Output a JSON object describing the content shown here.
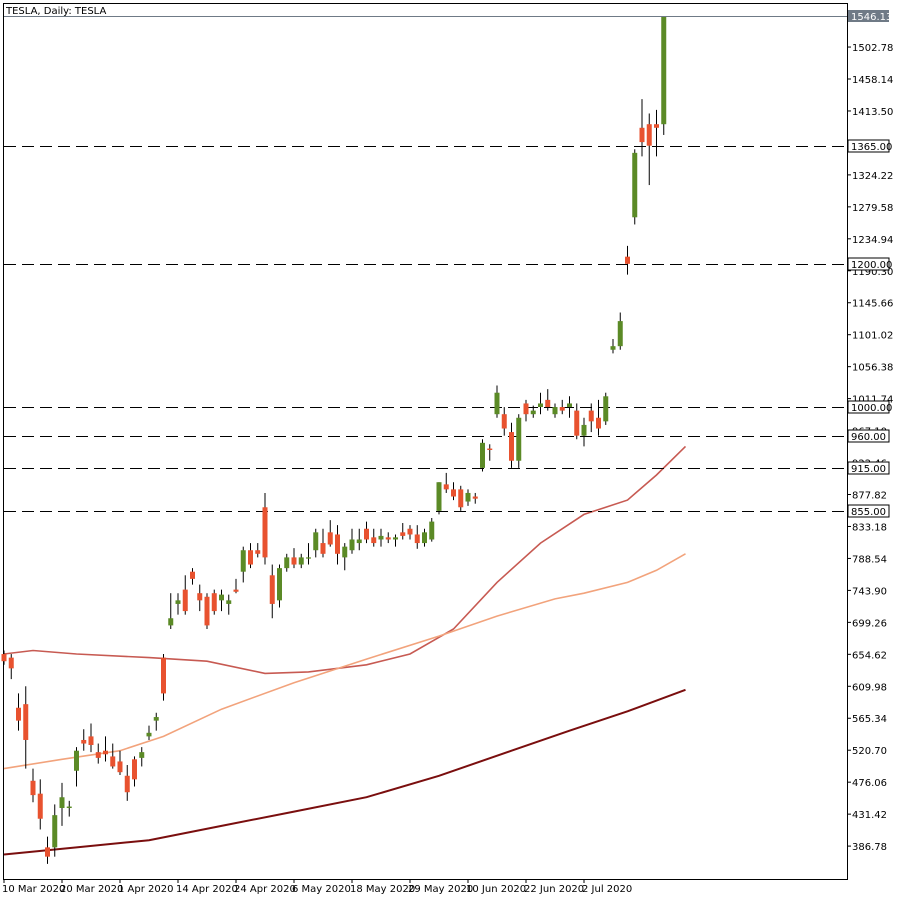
{
  "title": "TESLA, Daily:  TESLA",
  "colors": {
    "background": "#ffffff",
    "axis": "#000000",
    "up": "#5b8a26",
    "down": "#e8522f",
    "wick": "#000000",
    "level_line": "#000000",
    "current_price_box": "#6f7a86",
    "level_box_bg": "#ffffff",
    "ma_fast": "#c75a52",
    "ma_mid": "#f2a37c",
    "ma_slow": "#7a0e0e"
  },
  "chart_data": {
    "type": "candlestick",
    "symbol": "TESLA",
    "timeframe": "Daily",
    "ylim": [
      350,
      1560
    ],
    "y_ticks": [
      "1502.78",
      "1458.14",
      "1413.50",
      "1324.22",
      "1279.58",
      "1234.94",
      "1190.30",
      "1145.66",
      "1101.02",
      "1056.38",
      "1011.74",
      "967.10",
      "922.46",
      "877.82",
      "833.18",
      "788.54",
      "743.90",
      "699.26",
      "654.62",
      "609.98",
      "565.34",
      "520.70",
      "476.06",
      "431.42",
      "386.78"
    ],
    "x_labels": [
      {
        "label": "10 Mar 2020",
        "index": 0
      },
      {
        "label": "20 Mar 2020",
        "index": 8
      },
      {
        "label": "1 Apr 2020",
        "index": 16
      },
      {
        "label": "14 Apr 2020",
        "index": 24
      },
      {
        "label": "24 Apr 2020",
        "index": 32
      },
      {
        "label": "6 May 2020",
        "index": 40
      },
      {
        "label": "18 May 2020",
        "index": 48
      },
      {
        "label": "29 May 2020",
        "index": 56
      },
      {
        "label": "10 Jun 2020",
        "index": 64
      },
      {
        "label": "22 Jun 2020",
        "index": 72
      },
      {
        "label": "2 Jul 2020",
        "index": 80
      }
    ],
    "candles": [
      {
        "o": 655,
        "h": 660,
        "l": 640,
        "c": 645
      },
      {
        "o": 650,
        "h": 655,
        "l": 620,
        "c": 635
      },
      {
        "o": 580,
        "h": 600,
        "l": 548,
        "c": 562
      },
      {
        "o": 585,
        "h": 610,
        "l": 495,
        "c": 535
      },
      {
        "o": 478,
        "h": 495,
        "l": 448,
        "c": 458
      },
      {
        "o": 460,
        "h": 480,
        "l": 410,
        "c": 425
      },
      {
        "o": 385,
        "h": 400,
        "l": 362,
        "c": 372
      },
      {
        "o": 385,
        "h": 445,
        "l": 372,
        "c": 430
      },
      {
        "o": 440,
        "h": 475,
        "l": 415,
        "c": 455
      },
      {
        "o": 440,
        "h": 450,
        "l": 428,
        "c": 442
      },
      {
        "o": 492,
        "h": 525,
        "l": 470,
        "c": 520
      },
      {
        "o": 535,
        "h": 550,
        "l": 520,
        "c": 530
      },
      {
        "o": 540,
        "h": 558,
        "l": 518,
        "c": 528
      },
      {
        "o": 518,
        "h": 530,
        "l": 502,
        "c": 510
      },
      {
        "o": 520,
        "h": 540,
        "l": 505,
        "c": 515
      },
      {
        "o": 512,
        "h": 530,
        "l": 495,
        "c": 498
      },
      {
        "o": 505,
        "h": 520,
        "l": 486,
        "c": 490
      },
      {
        "o": 485,
        "h": 500,
        "l": 450,
        "c": 462
      },
      {
        "o": 508,
        "h": 512,
        "l": 470,
        "c": 480
      },
      {
        "o": 510,
        "h": 525,
        "l": 498,
        "c": 518
      },
      {
        "o": 540,
        "h": 555,
        "l": 535,
        "c": 545
      },
      {
        "o": 562,
        "h": 573,
        "l": 548,
        "c": 567
      },
      {
        "o": 650,
        "h": 655,
        "l": 590,
        "c": 600
      },
      {
        "o": 695,
        "h": 740,
        "l": 690,
        "c": 705
      },
      {
        "o": 725,
        "h": 740,
        "l": 710,
        "c": 730
      },
      {
        "o": 745,
        "h": 765,
        "l": 710,
        "c": 715
      },
      {
        "o": 770,
        "h": 775,
        "l": 752,
        "c": 760
      },
      {
        "o": 740,
        "h": 752,
        "l": 715,
        "c": 730
      },
      {
        "o": 735,
        "h": 740,
        "l": 690,
        "c": 695
      },
      {
        "o": 740,
        "h": 745,
        "l": 710,
        "c": 715
      },
      {
        "o": 730,
        "h": 745,
        "l": 715,
        "c": 738
      },
      {
        "o": 725,
        "h": 738,
        "l": 710,
        "c": 730
      },
      {
        "o": 745,
        "h": 760,
        "l": 740,
        "c": 742
      },
      {
        "o": 770,
        "h": 805,
        "l": 755,
        "c": 800
      },
      {
        "o": 800,
        "h": 810,
        "l": 775,
        "c": 780
      },
      {
        "o": 800,
        "h": 810,
        "l": 790,
        "c": 795
      },
      {
        "o": 860,
        "h": 880,
        "l": 780,
        "c": 790
      },
      {
        "o": 765,
        "h": 780,
        "l": 705,
        "c": 725
      },
      {
        "o": 730,
        "h": 780,
        "l": 720,
        "c": 775
      },
      {
        "o": 775,
        "h": 795,
        "l": 770,
        "c": 790
      },
      {
        "o": 790,
        "h": 803,
        "l": 775,
        "c": 780
      },
      {
        "o": 780,
        "h": 795,
        "l": 775,
        "c": 790
      },
      {
        "o": 790,
        "h": 810,
        "l": 780,
        "c": 790
      },
      {
        "o": 800,
        "h": 830,
        "l": 790,
        "c": 825
      },
      {
        "o": 810,
        "h": 830,
        "l": 790,
        "c": 795
      },
      {
        "o": 825,
        "h": 842,
        "l": 805,
        "c": 808
      },
      {
        "o": 822,
        "h": 835,
        "l": 780,
        "c": 795
      },
      {
        "o": 790,
        "h": 810,
        "l": 772,
        "c": 805
      },
      {
        "o": 800,
        "h": 830,
        "l": 795,
        "c": 815
      },
      {
        "o": 810,
        "h": 830,
        "l": 800,
        "c": 815
      },
      {
        "o": 830,
        "h": 840,
        "l": 810,
        "c": 815
      },
      {
        "o": 818,
        "h": 830,
        "l": 805,
        "c": 810
      },
      {
        "o": 815,
        "h": 830,
        "l": 805,
        "c": 820
      },
      {
        "o": 818,
        "h": 825,
        "l": 810,
        "c": 815
      },
      {
        "o": 815,
        "h": 822,
        "l": 805,
        "c": 818
      },
      {
        "o": 825,
        "h": 838,
        "l": 815,
        "c": 820
      },
      {
        "o": 830,
        "h": 835,
        "l": 815,
        "c": 822
      },
      {
        "o": 822,
        "h": 835,
        "l": 802,
        "c": 810
      },
      {
        "o": 810,
        "h": 830,
        "l": 805,
        "c": 825
      },
      {
        "o": 815,
        "h": 845,
        "l": 812,
        "c": 840
      },
      {
        "o": 855,
        "h": 895,
        "l": 850,
        "c": 895
      },
      {
        "o": 892,
        "h": 908,
        "l": 880,
        "c": 885
      },
      {
        "o": 885,
        "h": 895,
        "l": 870,
        "c": 875
      },
      {
        "o": 885,
        "h": 890,
        "l": 855,
        "c": 860
      },
      {
        "o": 868,
        "h": 885,
        "l": 862,
        "c": 880
      },
      {
        "o": 875,
        "h": 880,
        "l": 865,
        "c": 872
      },
      {
        "o": 915,
        "h": 955,
        "l": 910,
        "c": 950
      },
      {
        "o": 942,
        "h": 948,
        "l": 925,
        "c": 940
      },
      {
        "o": 990,
        "h": 1030,
        "l": 985,
        "c": 1020
      },
      {
        "o": 990,
        "h": 1000,
        "l": 960,
        "c": 970
      },
      {
        "o": 965,
        "h": 978,
        "l": 915,
        "c": 925
      },
      {
        "o": 925,
        "h": 990,
        "l": 915,
        "c": 985
      },
      {
        "o": 1005,
        "h": 1010,
        "l": 980,
        "c": 990
      },
      {
        "o": 990,
        "h": 1002,
        "l": 985,
        "c": 995
      },
      {
        "o": 1000,
        "h": 1020,
        "l": 990,
        "c": 1005
      },
      {
        "o": 1010,
        "h": 1025,
        "l": 995,
        "c": 1000
      },
      {
        "o": 990,
        "h": 1005,
        "l": 985,
        "c": 1000
      },
      {
        "o": 1000,
        "h": 1010,
        "l": 990,
        "c": 995
      },
      {
        "o": 1000,
        "h": 1015,
        "l": 985,
        "c": 1005
      },
      {
        "o": 995,
        "h": 1005,
        "l": 955,
        "c": 960
      },
      {
        "o": 960,
        "h": 985,
        "l": 945,
        "c": 975
      },
      {
        "o": 995,
        "h": 1005,
        "l": 965,
        "c": 980
      },
      {
        "o": 985,
        "h": 1010,
        "l": 960,
        "c": 970
      },
      {
        "o": 980,
        "h": 1020,
        "l": 975,
        "c": 1015
      },
      {
        "o": 1080,
        "h": 1095,
        "l": 1075,
        "c": 1085
      },
      {
        "o": 1085,
        "h": 1132,
        "l": 1080,
        "c": 1120
      },
      {
        "o": 1210,
        "h": 1225,
        "l": 1185,
        "c": 1200
      },
      {
        "o": 1265,
        "h": 1360,
        "l": 1255,
        "c": 1355
      },
      {
        "o": 1390,
        "h": 1430,
        "l": 1350,
        "c": 1370
      },
      {
        "o": 1395,
        "h": 1410,
        "l": 1310,
        "c": 1365
      },
      {
        "o": 1395,
        "h": 1415,
        "l": 1350,
        "c": 1390
      },
      {
        "o": 1395,
        "h": 1546.13,
        "l": 1380,
        "c": 1546.13
      }
    ],
    "moving_averages": [
      {
        "key": "ma_fast",
        "values": [
          [
            0,
            655
          ],
          [
            4,
            660
          ],
          [
            10,
            655
          ],
          [
            20,
            650
          ],
          [
            28,
            645
          ],
          [
            36,
            628
          ],
          [
            42,
            630
          ],
          [
            50,
            640
          ],
          [
            56,
            655
          ],
          [
            62,
            690
          ],
          [
            68,
            755
          ],
          [
            74,
            810
          ],
          [
            80,
            850
          ],
          [
            86,
            870
          ],
          [
            90,
            905
          ],
          [
            94,
            945
          ]
        ]
      },
      {
        "key": "ma_mid",
        "values": [
          [
            0,
            495
          ],
          [
            8,
            508
          ],
          [
            16,
            520
          ],
          [
            22,
            540
          ],
          [
            30,
            578
          ],
          [
            40,
            615
          ],
          [
            50,
            648
          ],
          [
            60,
            680
          ],
          [
            68,
            708
          ],
          [
            76,
            732
          ],
          [
            80,
            740
          ],
          [
            86,
            755
          ],
          [
            90,
            772
          ],
          [
            94,
            795
          ]
        ]
      },
      {
        "key": "ma_slow",
        "values": [
          [
            0,
            375
          ],
          [
            10,
            385
          ],
          [
            20,
            395
          ],
          [
            30,
            415
          ],
          [
            40,
            435
          ],
          [
            50,
            455
          ],
          [
            60,
            485
          ],
          [
            70,
            520
          ],
          [
            78,
            548
          ],
          [
            86,
            575
          ],
          [
            94,
            605
          ]
        ]
      }
    ],
    "levels": [
      {
        "value": 1365,
        "label": "1365.00"
      },
      {
        "value": 1200,
        "label": "1200.00"
      },
      {
        "value": 1000,
        "label": "1000.00"
      },
      {
        "value": 960,
        "label": "960.00"
      },
      {
        "value": 915,
        "label": "915.00"
      },
      {
        "value": 855,
        "label": "855.00"
      }
    ],
    "current_price": {
      "value": 1546.13,
      "label": "1546.13"
    }
  }
}
